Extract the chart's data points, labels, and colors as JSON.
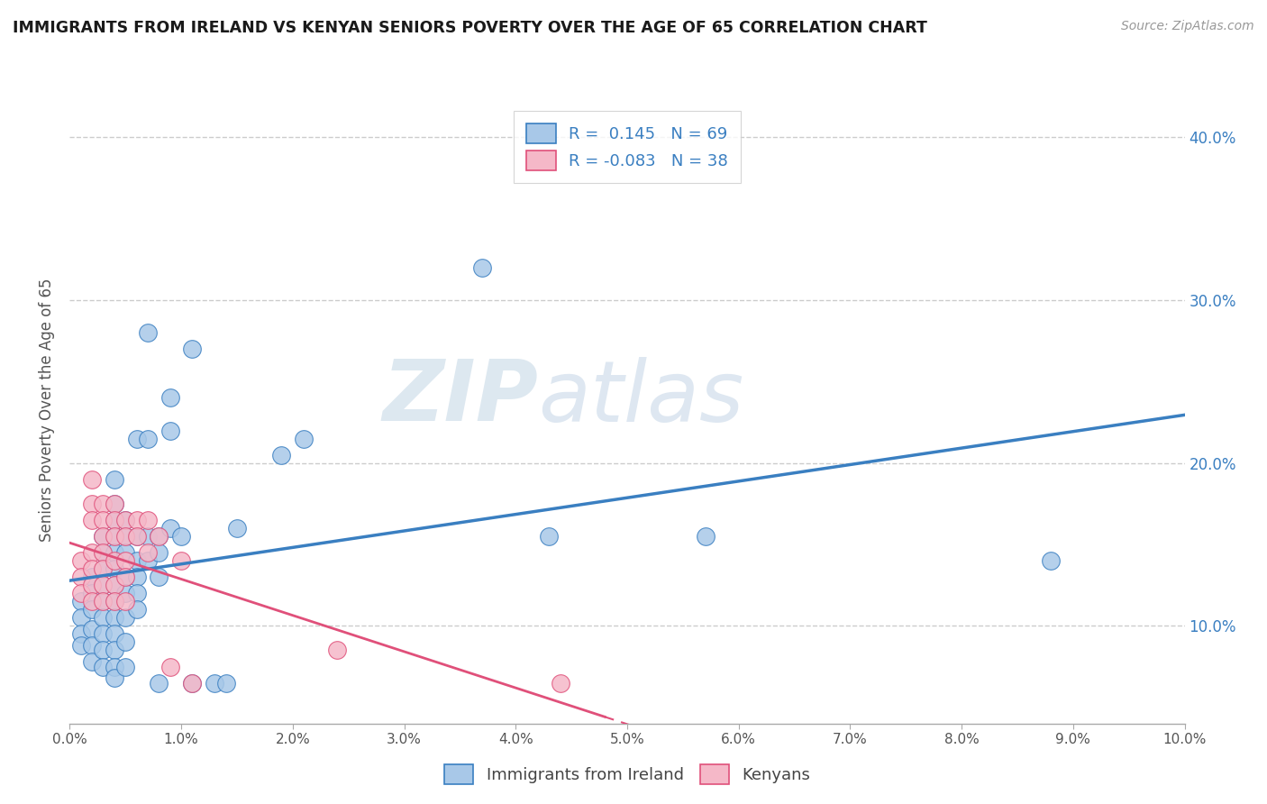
{
  "title": "IMMIGRANTS FROM IRELAND VS KENYAN SENIORS POVERTY OVER THE AGE OF 65 CORRELATION CHART",
  "source": "Source: ZipAtlas.com",
  "ylabel": "Seniors Poverty Over the Age of 65",
  "r_ireland": 0.145,
  "n_ireland": 69,
  "r_kenya": -0.083,
  "n_kenya": 38,
  "xlim": [
    0.0,
    0.1
  ],
  "ylim": [
    0.04,
    0.425
  ],
  "yticks": [
    0.1,
    0.2,
    0.3,
    0.4
  ],
  "ytick_labels": [
    "10.0%",
    "20.0%",
    "30.0%",
    "40.0%"
  ],
  "color_ireland": "#a8c8e8",
  "color_kenya": "#f5b8c8",
  "line_color_ireland": "#3a7fc1",
  "line_color_kenya": "#e0507a",
  "watermark_color": "#dde8f0",
  "ireland_points": [
    [
      0.001,
      0.115
    ],
    [
      0.001,
      0.105
    ],
    [
      0.001,
      0.095
    ],
    [
      0.001,
      0.088
    ],
    [
      0.002,
      0.13
    ],
    [
      0.002,
      0.12
    ],
    [
      0.002,
      0.11
    ],
    [
      0.002,
      0.098
    ],
    [
      0.002,
      0.088
    ],
    [
      0.002,
      0.078
    ],
    [
      0.003,
      0.155
    ],
    [
      0.003,
      0.145
    ],
    [
      0.003,
      0.135
    ],
    [
      0.003,
      0.125
    ],
    [
      0.003,
      0.115
    ],
    [
      0.003,
      0.105
    ],
    [
      0.003,
      0.095
    ],
    [
      0.003,
      0.085
    ],
    [
      0.003,
      0.075
    ],
    [
      0.004,
      0.19
    ],
    [
      0.004,
      0.175
    ],
    [
      0.004,
      0.165
    ],
    [
      0.004,
      0.155
    ],
    [
      0.004,
      0.145
    ],
    [
      0.004,
      0.135
    ],
    [
      0.004,
      0.125
    ],
    [
      0.004,
      0.115
    ],
    [
      0.004,
      0.105
    ],
    [
      0.004,
      0.095
    ],
    [
      0.004,
      0.085
    ],
    [
      0.004,
      0.075
    ],
    [
      0.004,
      0.068
    ],
    [
      0.005,
      0.165
    ],
    [
      0.005,
      0.155
    ],
    [
      0.005,
      0.145
    ],
    [
      0.005,
      0.13
    ],
    [
      0.005,
      0.12
    ],
    [
      0.005,
      0.105
    ],
    [
      0.005,
      0.09
    ],
    [
      0.005,
      0.075
    ],
    [
      0.006,
      0.215
    ],
    [
      0.006,
      0.155
    ],
    [
      0.006,
      0.14
    ],
    [
      0.006,
      0.13
    ],
    [
      0.006,
      0.12
    ],
    [
      0.006,
      0.11
    ],
    [
      0.007,
      0.28
    ],
    [
      0.007,
      0.215
    ],
    [
      0.007,
      0.155
    ],
    [
      0.007,
      0.14
    ],
    [
      0.008,
      0.155
    ],
    [
      0.008,
      0.145
    ],
    [
      0.008,
      0.13
    ],
    [
      0.008,
      0.065
    ],
    [
      0.009,
      0.24
    ],
    [
      0.009,
      0.22
    ],
    [
      0.009,
      0.16
    ],
    [
      0.01,
      0.155
    ],
    [
      0.011,
      0.27
    ],
    [
      0.011,
      0.065
    ],
    [
      0.013,
      0.065
    ],
    [
      0.014,
      0.065
    ],
    [
      0.015,
      0.16
    ],
    [
      0.019,
      0.205
    ],
    [
      0.021,
      0.215
    ],
    [
      0.037,
      0.32
    ],
    [
      0.043,
      0.155
    ],
    [
      0.057,
      0.155
    ],
    [
      0.088,
      0.14
    ]
  ],
  "kenya_points": [
    [
      0.001,
      0.14
    ],
    [
      0.001,
      0.13
    ],
    [
      0.001,
      0.12
    ],
    [
      0.002,
      0.19
    ],
    [
      0.002,
      0.175
    ],
    [
      0.002,
      0.165
    ],
    [
      0.002,
      0.145
    ],
    [
      0.002,
      0.135
    ],
    [
      0.002,
      0.125
    ],
    [
      0.002,
      0.115
    ],
    [
      0.003,
      0.175
    ],
    [
      0.003,
      0.165
    ],
    [
      0.003,
      0.155
    ],
    [
      0.003,
      0.145
    ],
    [
      0.003,
      0.135
    ],
    [
      0.003,
      0.125
    ],
    [
      0.003,
      0.115
    ],
    [
      0.004,
      0.175
    ],
    [
      0.004,
      0.165
    ],
    [
      0.004,
      0.155
    ],
    [
      0.004,
      0.14
    ],
    [
      0.004,
      0.125
    ],
    [
      0.004,
      0.115
    ],
    [
      0.005,
      0.165
    ],
    [
      0.005,
      0.155
    ],
    [
      0.005,
      0.14
    ],
    [
      0.005,
      0.13
    ],
    [
      0.005,
      0.115
    ],
    [
      0.006,
      0.165
    ],
    [
      0.006,
      0.155
    ],
    [
      0.007,
      0.165
    ],
    [
      0.007,
      0.145
    ],
    [
      0.008,
      0.155
    ],
    [
      0.009,
      0.075
    ],
    [
      0.01,
      0.14
    ],
    [
      0.011,
      0.065
    ],
    [
      0.024,
      0.085
    ],
    [
      0.044,
      0.065
    ]
  ],
  "ireland_regline": [
    0.0,
    0.1,
    0.09,
    0.155
  ],
  "kenya_regline": [
    0.0,
    0.13,
    0.09,
    0.1
  ],
  "kenya_regline_solid_end": 0.048
}
